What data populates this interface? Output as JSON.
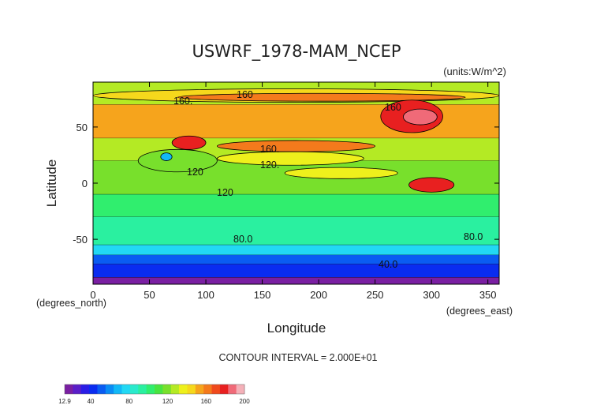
{
  "chart_data": {
    "type": "heatmap",
    "title": "USWRF_1978-MAM_NCEP",
    "units_label": "(units:W/m^2)",
    "xlabel": "Longitude",
    "ylabel": "Latitude",
    "x_unit_note": "(degrees_east)",
    "y_unit_note": "(degrees_north)",
    "xlim": [
      0,
      360
    ],
    "ylim": [
      -90,
      90
    ],
    "x_ticks": [
      0,
      50,
      100,
      150,
      200,
      250,
      300,
      350
    ],
    "y_ticks": [
      -50,
      0,
      50
    ],
    "contour_interval_text": "CONTOUR INTERVAL = 2.000E+01",
    "contour_labels": [
      "160.",
      "160",
      "160",
      "160.",
      "120",
      "120.",
      "120",
      "80.0",
      "80.0",
      "40.0"
    ],
    "colorbar": {
      "min": 12.9,
      "max": 200,
      "tick_labels": [
        "12.9",
        "40",
        "80",
        "120",
        "160",
        "200"
      ],
      "tick_values": [
        12.9,
        40,
        80,
        120,
        160,
        200
      ],
      "colors": [
        "#7a1fa2",
        "#5a1ec8",
        "#2a1de6",
        "#0a2cf0",
        "#0a5cf2",
        "#0a8cf4",
        "#12b8f6",
        "#22d8f4",
        "#2aeacc",
        "#2af0a0",
        "#30ee6e",
        "#48e440",
        "#78e02c",
        "#b4ea24",
        "#eef01c",
        "#f6d81c",
        "#f6a41c",
        "#f47a1c",
        "#f04a1c",
        "#e82020",
        "#f06a78",
        "#f4b0b8"
      ]
    },
    "zones": [
      {
        "lat_from": 90,
        "lat_to": 70,
        "value": 130
      },
      {
        "lat_from": 70,
        "lat_to": 40,
        "value": 150
      },
      {
        "lat_from": 40,
        "lat_to": 20,
        "value": 130
      },
      {
        "lat_from": 20,
        "lat_to": -10,
        "value": 115
      },
      {
        "lat_from": -10,
        "lat_to": -30,
        "value": 105
      },
      {
        "lat_from": -30,
        "lat_to": -55,
        "value": 95
      },
      {
        "lat_from": -55,
        "lat_to": -64,
        "value": 75
      },
      {
        "lat_from": -64,
        "lat_to": -72,
        "value": 55
      },
      {
        "lat_from": -72,
        "lat_to": -84,
        "value": 40
      },
      {
        "lat_from": -84,
        "lat_to": -90,
        "value": 15
      }
    ],
    "features": [
      {
        "lon_from": 0,
        "lon_to": 360,
        "lat_from": 84,
        "lat_to": 72,
        "value": 148
      },
      {
        "lon_from": 75,
        "lon_to": 330,
        "lat_from": 80,
        "lat_to": 73,
        "value": 165
      },
      {
        "lon_from": 255,
        "lon_to": 310,
        "lat_from": 74,
        "lat_to": 45,
        "value": 175
      },
      {
        "lon_from": 275,
        "lon_to": 305,
        "lat_from": 66,
        "lat_to": 52,
        "value": 190
      },
      {
        "lon_from": 70,
        "lon_to": 100,
        "lat_from": 42,
        "lat_to": 30,
        "value": 175
      },
      {
        "lon_from": 110,
        "lon_to": 250,
        "lat_from": 38,
        "lat_to": 28,
        "value": 162
      },
      {
        "lon_from": 280,
        "lon_to": 320,
        "lat_from": 5,
        "lat_to": -8,
        "value": 175
      },
      {
        "lon_from": 40,
        "lon_to": 110,
        "lat_from": 30,
        "lat_to": 10,
        "value": 115
      },
      {
        "lon_from": 170,
        "lon_to": 270,
        "lat_from": 14,
        "lat_to": 4,
        "value": 140
      },
      {
        "lon_from": 110,
        "lon_to": 240,
        "lat_from": 28,
        "lat_to": 16,
        "value": 132
      },
      {
        "lon_from": 60,
        "lon_to": 70,
        "lat_from": 27,
        "lat_to": 20,
        "value": 70
      }
    ]
  }
}
